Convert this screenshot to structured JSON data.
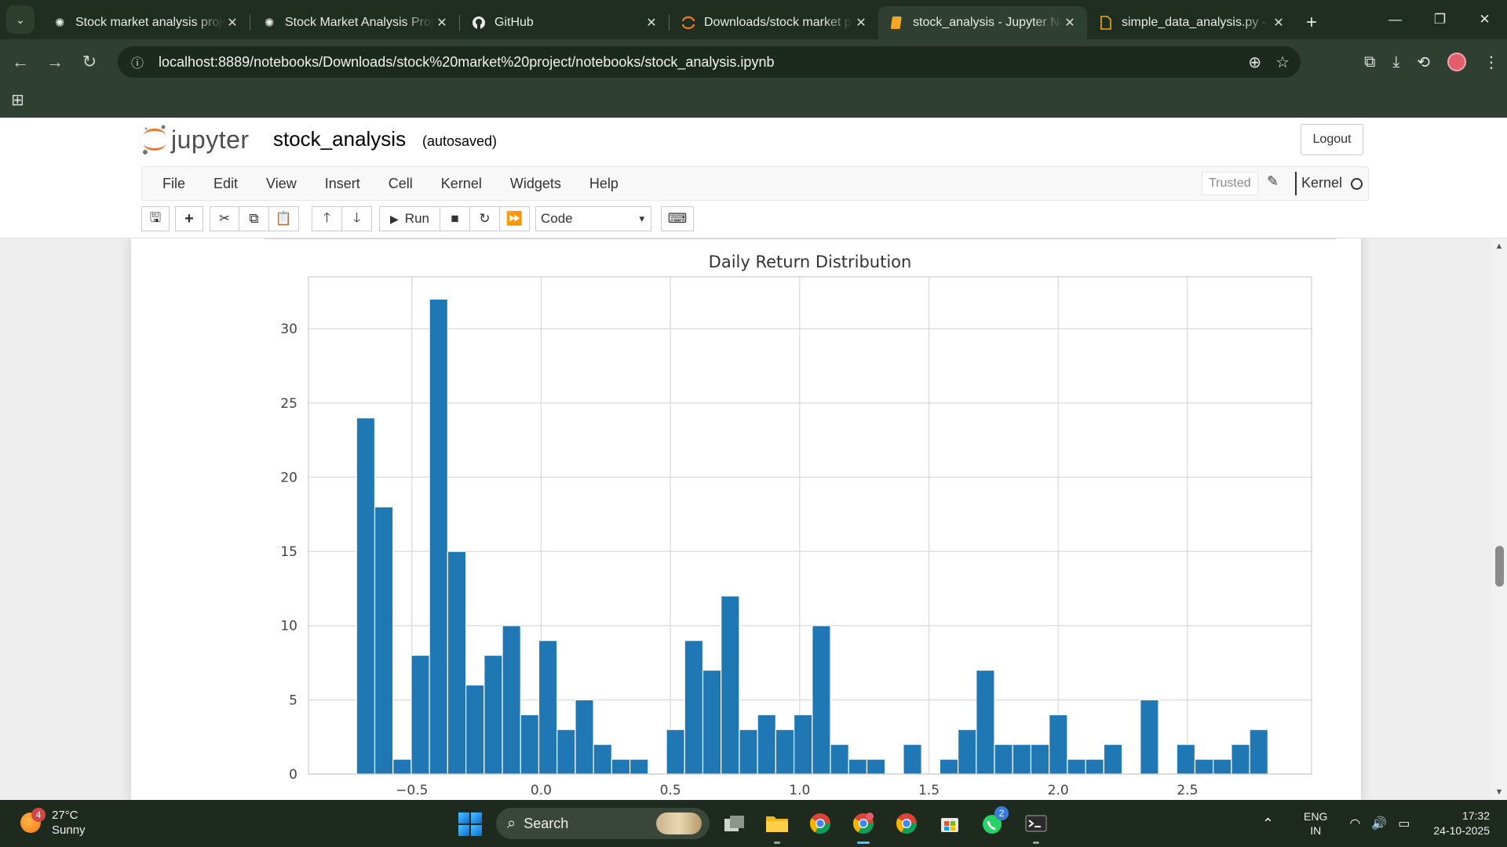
{
  "browser": {
    "tabs": [
      {
        "title": "Stock market analysis proje",
        "icon": "openai-icon",
        "active": false
      },
      {
        "title": "Stock Market Analysis Proj",
        "icon": "openai-icon",
        "active": false
      },
      {
        "title": "GitHub",
        "icon": "github-icon",
        "active": false
      },
      {
        "title": "Downloads/stock market p",
        "icon": "jupyter-icon",
        "active": false
      },
      {
        "title": "stock_analysis - Jupyter No",
        "icon": "notebook-icon",
        "active": true
      },
      {
        "title": "simple_data_analysis.py - J",
        "icon": "file-icon",
        "active": false
      }
    ],
    "url": "localhost:8889/notebooks/Downloads/stock%20market%20project/notebooks/stock_analysis.ipynb"
  },
  "jupyter": {
    "logo_text": "jupyter",
    "notebook_name": "stock_analysis",
    "autosave_status": "(autosaved)",
    "logout_label": "Logout",
    "menu": [
      "File",
      "Edit",
      "View",
      "Insert",
      "Cell",
      "Kernel",
      "Widgets",
      "Help"
    ],
    "trusted_label": "Trusted",
    "kernel_label": "Kernel",
    "run_label": "Run",
    "cell_type": "Code"
  },
  "chart_data": {
    "type": "bar",
    "title": "Daily Return Distribution",
    "xlabel": "",
    "ylabel": "",
    "x_ticks": [
      -0.5,
      0.0,
      0.5,
      1.0,
      1.5,
      2.0,
      2.5
    ],
    "x_tick_labels": [
      "−0.5",
      "0.0",
      "0.5",
      "1.0",
      "1.5",
      "2.0",
      "2.5"
    ],
    "y_ticks": [
      0,
      5,
      10,
      15,
      20,
      25,
      30
    ],
    "xlim": [
      -0.9,
      2.98
    ],
    "ylim": [
      0,
      33.5
    ],
    "grid": true,
    "bar_color": "#1f77b4",
    "bin_start": -0.714,
    "bin_width": 0.0705,
    "counts": [
      24,
      18,
      1,
      8,
      32,
      15,
      6,
      8,
      10,
      4,
      9,
      3,
      5,
      2,
      1,
      1,
      0,
      3,
      9,
      7,
      12,
      3,
      4,
      3,
      4,
      10,
      2,
      1,
      1,
      0,
      2,
      0,
      1,
      3,
      7,
      2,
      2,
      2,
      4,
      1,
      1,
      2,
      0,
      5,
      0,
      2,
      1,
      1,
      2,
      3
    ]
  },
  "taskbar": {
    "weather_temp": "27°C",
    "weather_desc": "Sunny",
    "weather_badge": "4",
    "search_label": "Search",
    "whatsapp_badge": "2",
    "lang_line1": "ENG",
    "lang_line2": "IN",
    "time": "17:32",
    "date": "24-10-2025"
  }
}
